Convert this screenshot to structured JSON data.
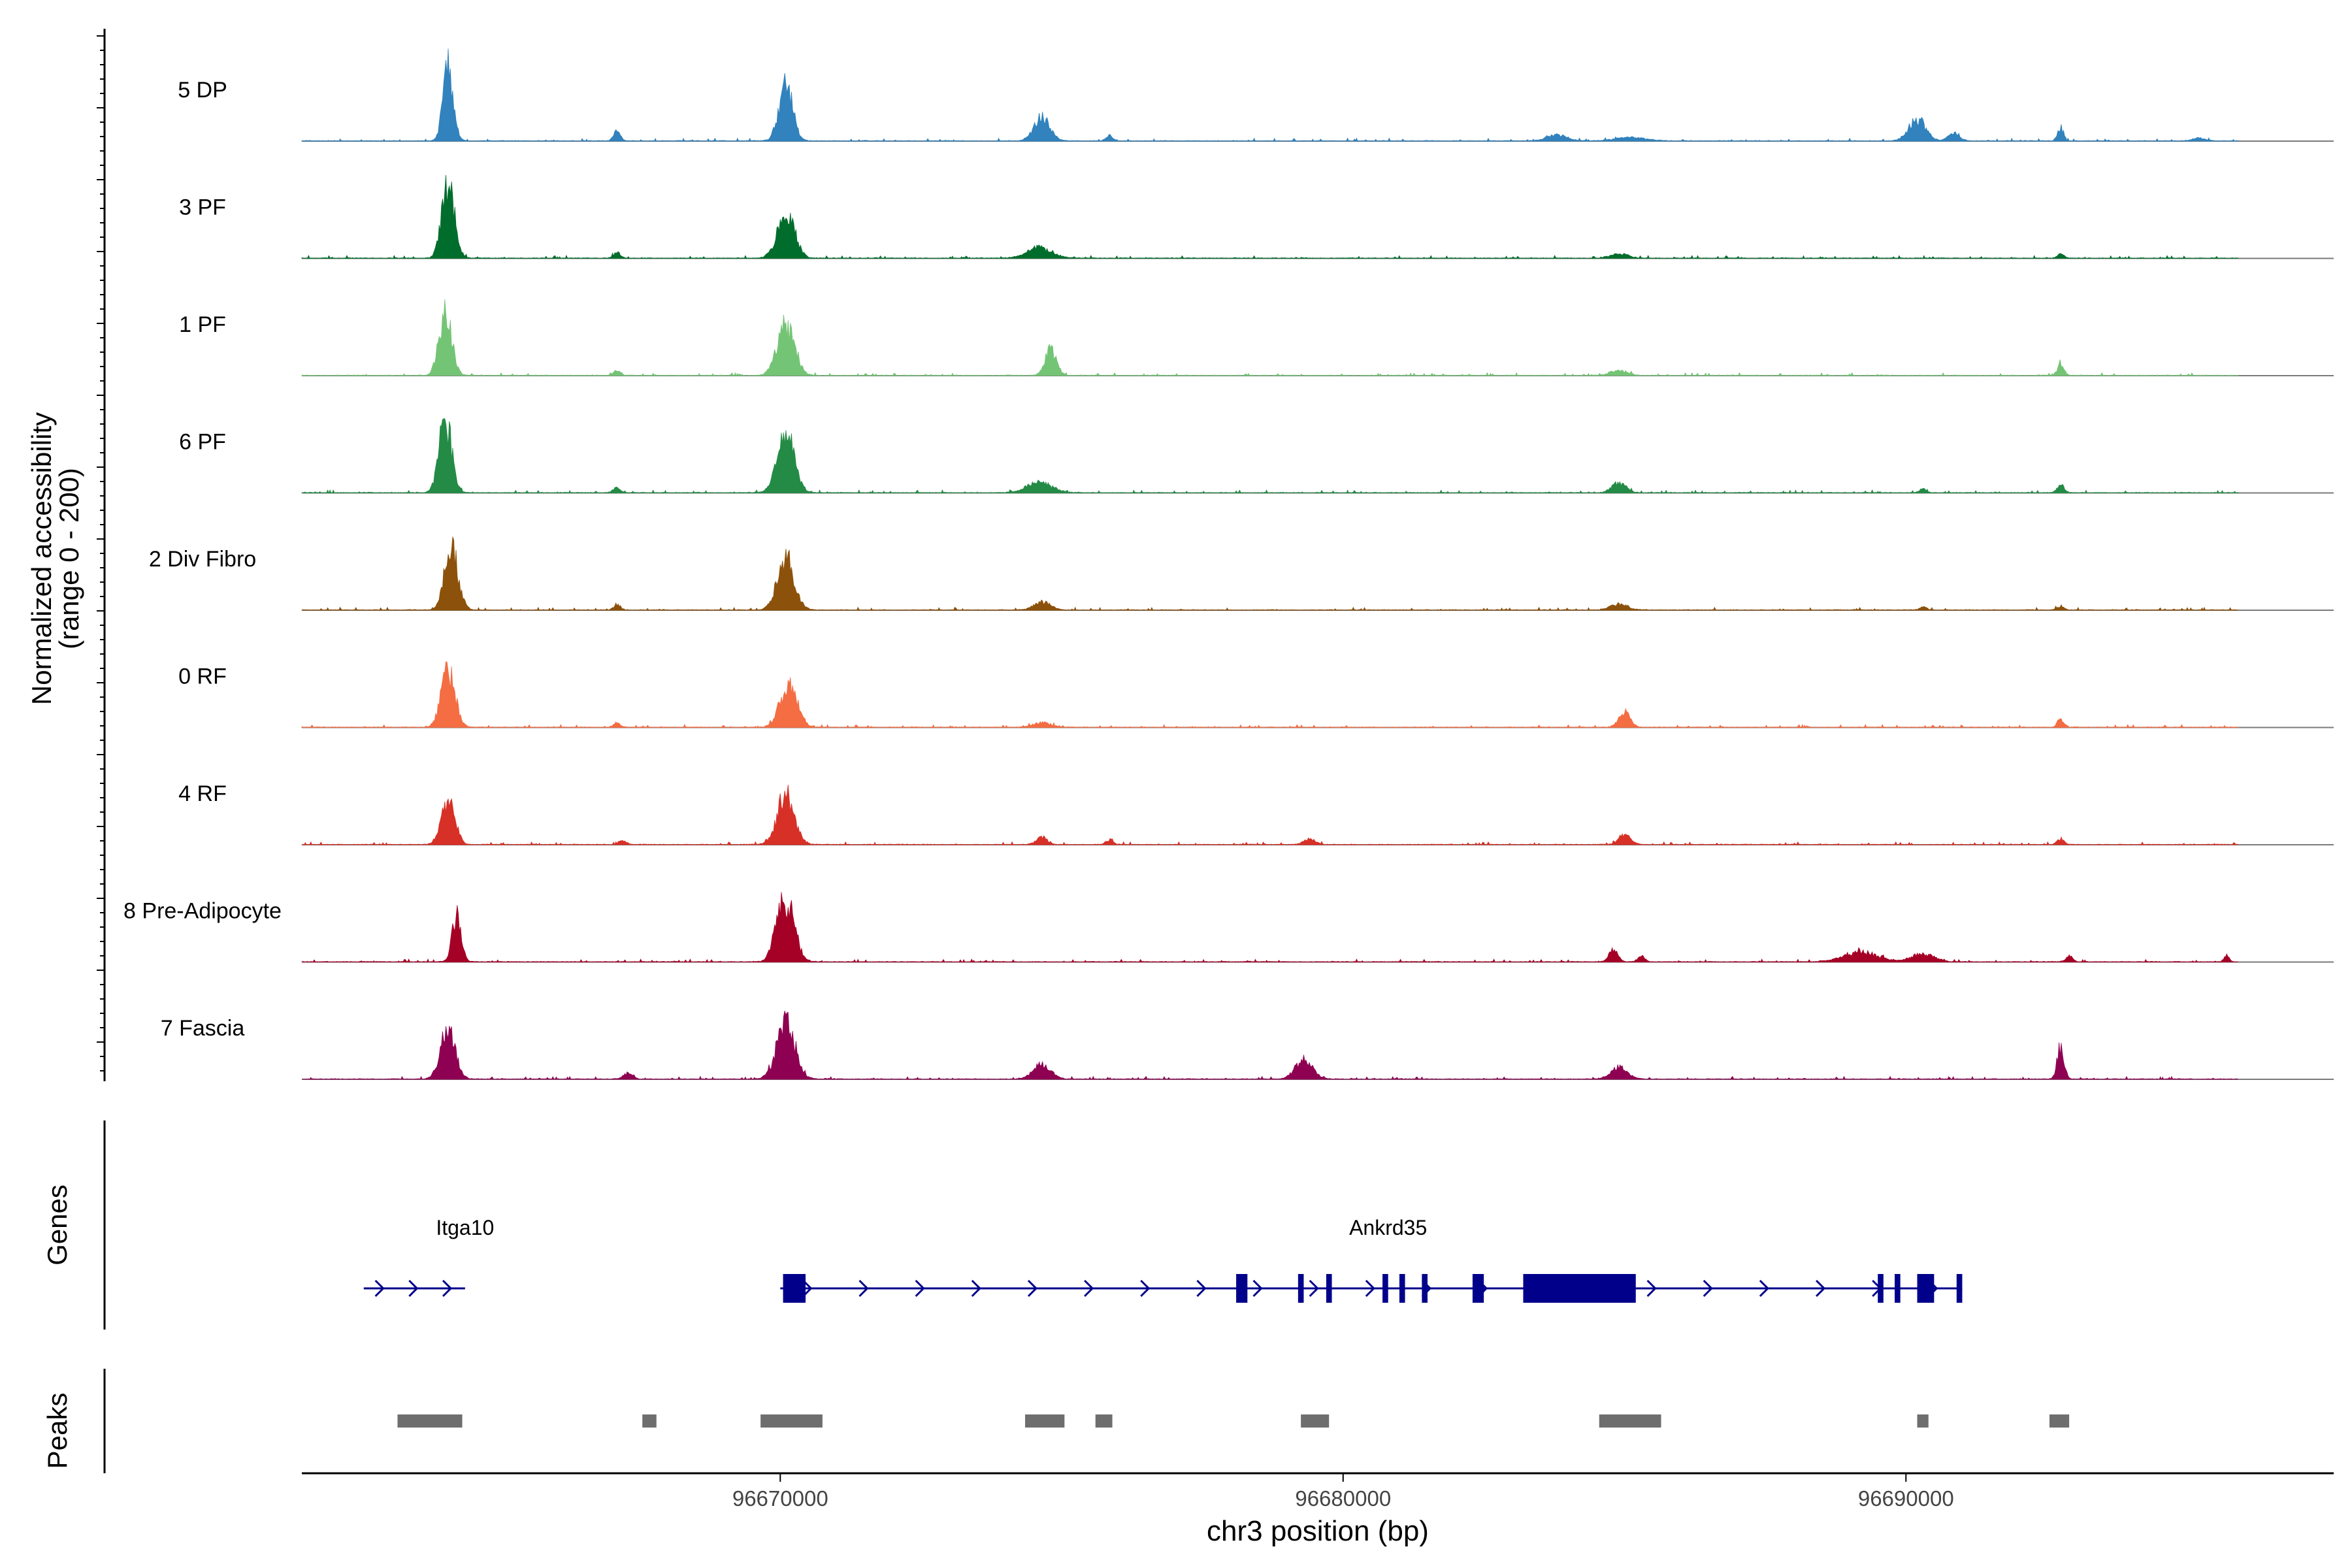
{
  "chart_data": {
    "type": "area",
    "title": "",
    "region": "chr3",
    "xlabel": "chr3 position (bp)",
    "ylabel": "Normalized accessibility",
    "ylabel_range": "(range 0 - 200)",
    "xlim": [
      96661500,
      96697600
    ],
    "ylim": [
      0,
      200
    ],
    "x_ticks": [
      96670000,
      96680000,
      96690000
    ],
    "x_tick_labels": [
      "96670000",
      "96680000",
      "96690000"
    ],
    "series": [
      {
        "name": "5 DP",
        "color": "#3182bd",
        "peaks": [
          [
            96664100,
            190,
            90
          ],
          [
            96667100,
            25,
            60
          ],
          [
            96670100,
            150,
            120
          ],
          [
            96674650,
            60,
            140
          ],
          [
            96675850,
            14,
            60
          ],
          [
            96683800,
            15,
            180
          ],
          [
            96685100,
            10,
            250
          ],
          [
            96690200,
            55,
            150
          ],
          [
            96690850,
            20,
            100
          ],
          [
            96692750,
            35,
            50
          ],
          [
            96695200,
            8,
            100
          ]
        ]
      },
      {
        "name": "3 PF",
        "color": "#006d2c",
        "peaks": [
          [
            96664100,
            200,
            110
          ],
          [
            96667100,
            15,
            60
          ],
          [
            96670100,
            120,
            150
          ],
          [
            96674600,
            28,
            220
          ],
          [
            96684900,
            12,
            150
          ],
          [
            96692750,
            10,
            60
          ]
        ]
      },
      {
        "name": "1 PF",
        "color": "#74c476",
        "peaks": [
          [
            96664050,
            170,
            110
          ],
          [
            96667100,
            12,
            60
          ],
          [
            96670100,
            130,
            150
          ],
          [
            96674800,
            65,
            100
          ],
          [
            96684900,
            14,
            150
          ],
          [
            96692750,
            28,
            60
          ]
        ]
      },
      {
        "name": "6 PF",
        "color": "#238b45",
        "peaks": [
          [
            96664050,
            190,
            110
          ],
          [
            96667100,
            15,
            60
          ],
          [
            96670100,
            150,
            150
          ],
          [
            96674600,
            28,
            220
          ],
          [
            96684900,
            26,
            120
          ],
          [
            96690300,
            10,
            60
          ],
          [
            96692750,
            22,
            60
          ]
        ]
      },
      {
        "name": "2 Div Fibro",
        "color": "#8c510a",
        "peaks": [
          [
            96664150,
            165,
            120
          ],
          [
            96667100,
            14,
            60
          ],
          [
            96670100,
            135,
            150
          ],
          [
            96674650,
            20,
            150
          ],
          [
            96684900,
            15,
            150
          ],
          [
            96690300,
            8,
            60
          ],
          [
            96692750,
            10,
            60
          ]
        ]
      },
      {
        "name": "0 RF",
        "color": "#f46d43",
        "peaks": [
          [
            96664100,
            150,
            120
          ],
          [
            96667100,
            12,
            60
          ],
          [
            96670150,
            110,
            150
          ],
          [
            96674650,
            12,
            150
          ],
          [
            96685000,
            40,
            100
          ],
          [
            96692750,
            22,
            60
          ]
        ]
      },
      {
        "name": "4 RF",
        "color": "#d73027",
        "peaks": [
          [
            96664100,
            110,
            120
          ],
          [
            96667200,
            12,
            60
          ],
          [
            96670100,
            130,
            150
          ],
          [
            96674650,
            18,
            100
          ],
          [
            96675850,
            12,
            60
          ],
          [
            96679400,
            14,
            100
          ],
          [
            96685000,
            26,
            100
          ],
          [
            96692750,
            16,
            60
          ]
        ]
      },
      {
        "name": "8 Pre-Adipocyte",
        "color": "#a50026",
        "peaks": [
          [
            96664250,
            120,
            80
          ],
          [
            96669900,
            15,
            80
          ],
          [
            96670100,
            160,
            150
          ],
          [
            96684800,
            30,
            80
          ],
          [
            96685300,
            15,
            60
          ],
          [
            96689200,
            25,
            300
          ],
          [
            96690300,
            20,
            200
          ],
          [
            96692900,
            15,
            60
          ],
          [
            96695700,
            18,
            40
          ]
        ]
      },
      {
        "name": "7 Fascia",
        "color": "#8e0152",
        "peaks": [
          [
            96664100,
            130,
            130
          ],
          [
            96667300,
            16,
            80
          ],
          [
            96670100,
            150,
            160
          ],
          [
            96674650,
            40,
            150
          ],
          [
            96679300,
            50,
            150
          ],
          [
            96684900,
            30,
            150
          ],
          [
            96692750,
            85,
            60
          ]
        ]
      }
    ],
    "genes": {
      "label": "Genes",
      "names": [
        {
          "name": "Itga10",
          "x": 96664400
        },
        {
          "name": "Ankrd35",
          "x": 96680800
        }
      ],
      "transcripts": [
        {
          "start": 96662600,
          "end": 96664400,
          "blocks": []
        },
        {
          "start": 96670000,
          "end": 96691000,
          "blocks": [
            [
              96670050,
              96670450
            ],
            [
              96678100,
              96678300
            ],
            [
              96679200,
              96679300
            ],
            [
              96679700,
              96679800
            ],
            [
              96680700,
              96680800
            ],
            [
              96681000,
              96681100
            ],
            [
              96681400,
              96681500
            ],
            [
              96682300,
              96682500
            ],
            [
              96683200,
              96685200
            ],
            [
              96689500,
              96689600
            ],
            [
              96689800,
              96689900
            ],
            [
              96690200,
              96690500
            ],
            [
              96690900,
              96691000
            ]
          ]
        }
      ]
    },
    "peaks_track": {
      "label": "Peaks",
      "regions": [
        [
          96663200,
          96664350
        ],
        [
          96667550,
          96667800
        ],
        [
          96669650,
          96670750
        ],
        [
          96674350,
          96675050
        ],
        [
          96675600,
          96675900
        ],
        [
          96679250,
          96679750
        ],
        [
          96684550,
          96685650
        ],
        [
          96690200,
          96690400
        ],
        [
          96692550,
          96692900
        ]
      ]
    }
  }
}
